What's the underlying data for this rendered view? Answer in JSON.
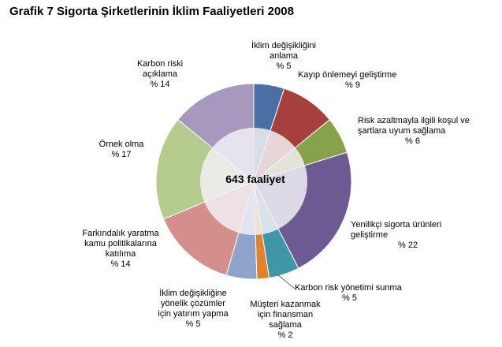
{
  "title": "Grafik 7  Sigorta Şirketlerinin İklim Faaliyetleri 2008",
  "center_label": "643  faaliyet",
  "chart_data": {
    "type": "pie",
    "title": "Grafik 7  Sigorta Şirketlerinin İklim Faaliyetleri 2008",
    "center_text": "643  faaliyet",
    "value_unit": "%",
    "start_direction": "12 o'clock, clockwise",
    "slices": [
      {
        "label_lines": [
          "İklim değişikliğini",
          "anlama"
        ],
        "pct_text": "% 5",
        "value": 5,
        "color": "#4a6fa5"
      },
      {
        "label_lines": [
          "Kayıp önlemeyi geliştirme"
        ],
        "pct_text": "% 9",
        "value": 9,
        "color": "#a6403f"
      },
      {
        "label_lines": [
          "Risk azaltmayla ilgili koşul ve",
          "şartlara uyum sağlama"
        ],
        "pct_text": "%  6",
        "value": 6,
        "color": "#87a24a"
      },
      {
        "label_lines": [
          "Yenilikçi sigorta ürünleri",
          "geliştirme"
        ],
        "pct_text": "% 22",
        "value": 22,
        "color": "#6e5a93"
      },
      {
        "label_lines": [
          "Karbon risk yönetimi sunma"
        ],
        "pct_text": "% 5",
        "value": 5,
        "color": "#3f96a6"
      },
      {
        "label_lines": [
          "Müşteri kazanmak",
          "için finansman",
          "sağlama"
        ],
        "pct_text": "% 2",
        "value": 2,
        "color": "#e0822e"
      },
      {
        "label_lines": [
          "İklim değişikliğine",
          "yönelik çözümler",
          "için yatırım yapma"
        ],
        "pct_text": "% 5",
        "value": 5,
        "color": "#8fa4cc"
      },
      {
        "label_lines": [
          "Farkındalık yaratma",
          "kamu politikalarına",
          "katılıma"
        ],
        "pct_text": "% 14",
        "value": 14,
        "color": "#d48f8d"
      },
      {
        "label_lines": [
          "Örnek olma"
        ],
        "pct_text": "% 17",
        "value": 17,
        "color": "#b5cc8e"
      },
      {
        "label_lines": [
          "Karbon riski",
          "açıklama"
        ],
        "pct_text": "% 14",
        "value": 14,
        "color": "#a699bd"
      }
    ]
  }
}
